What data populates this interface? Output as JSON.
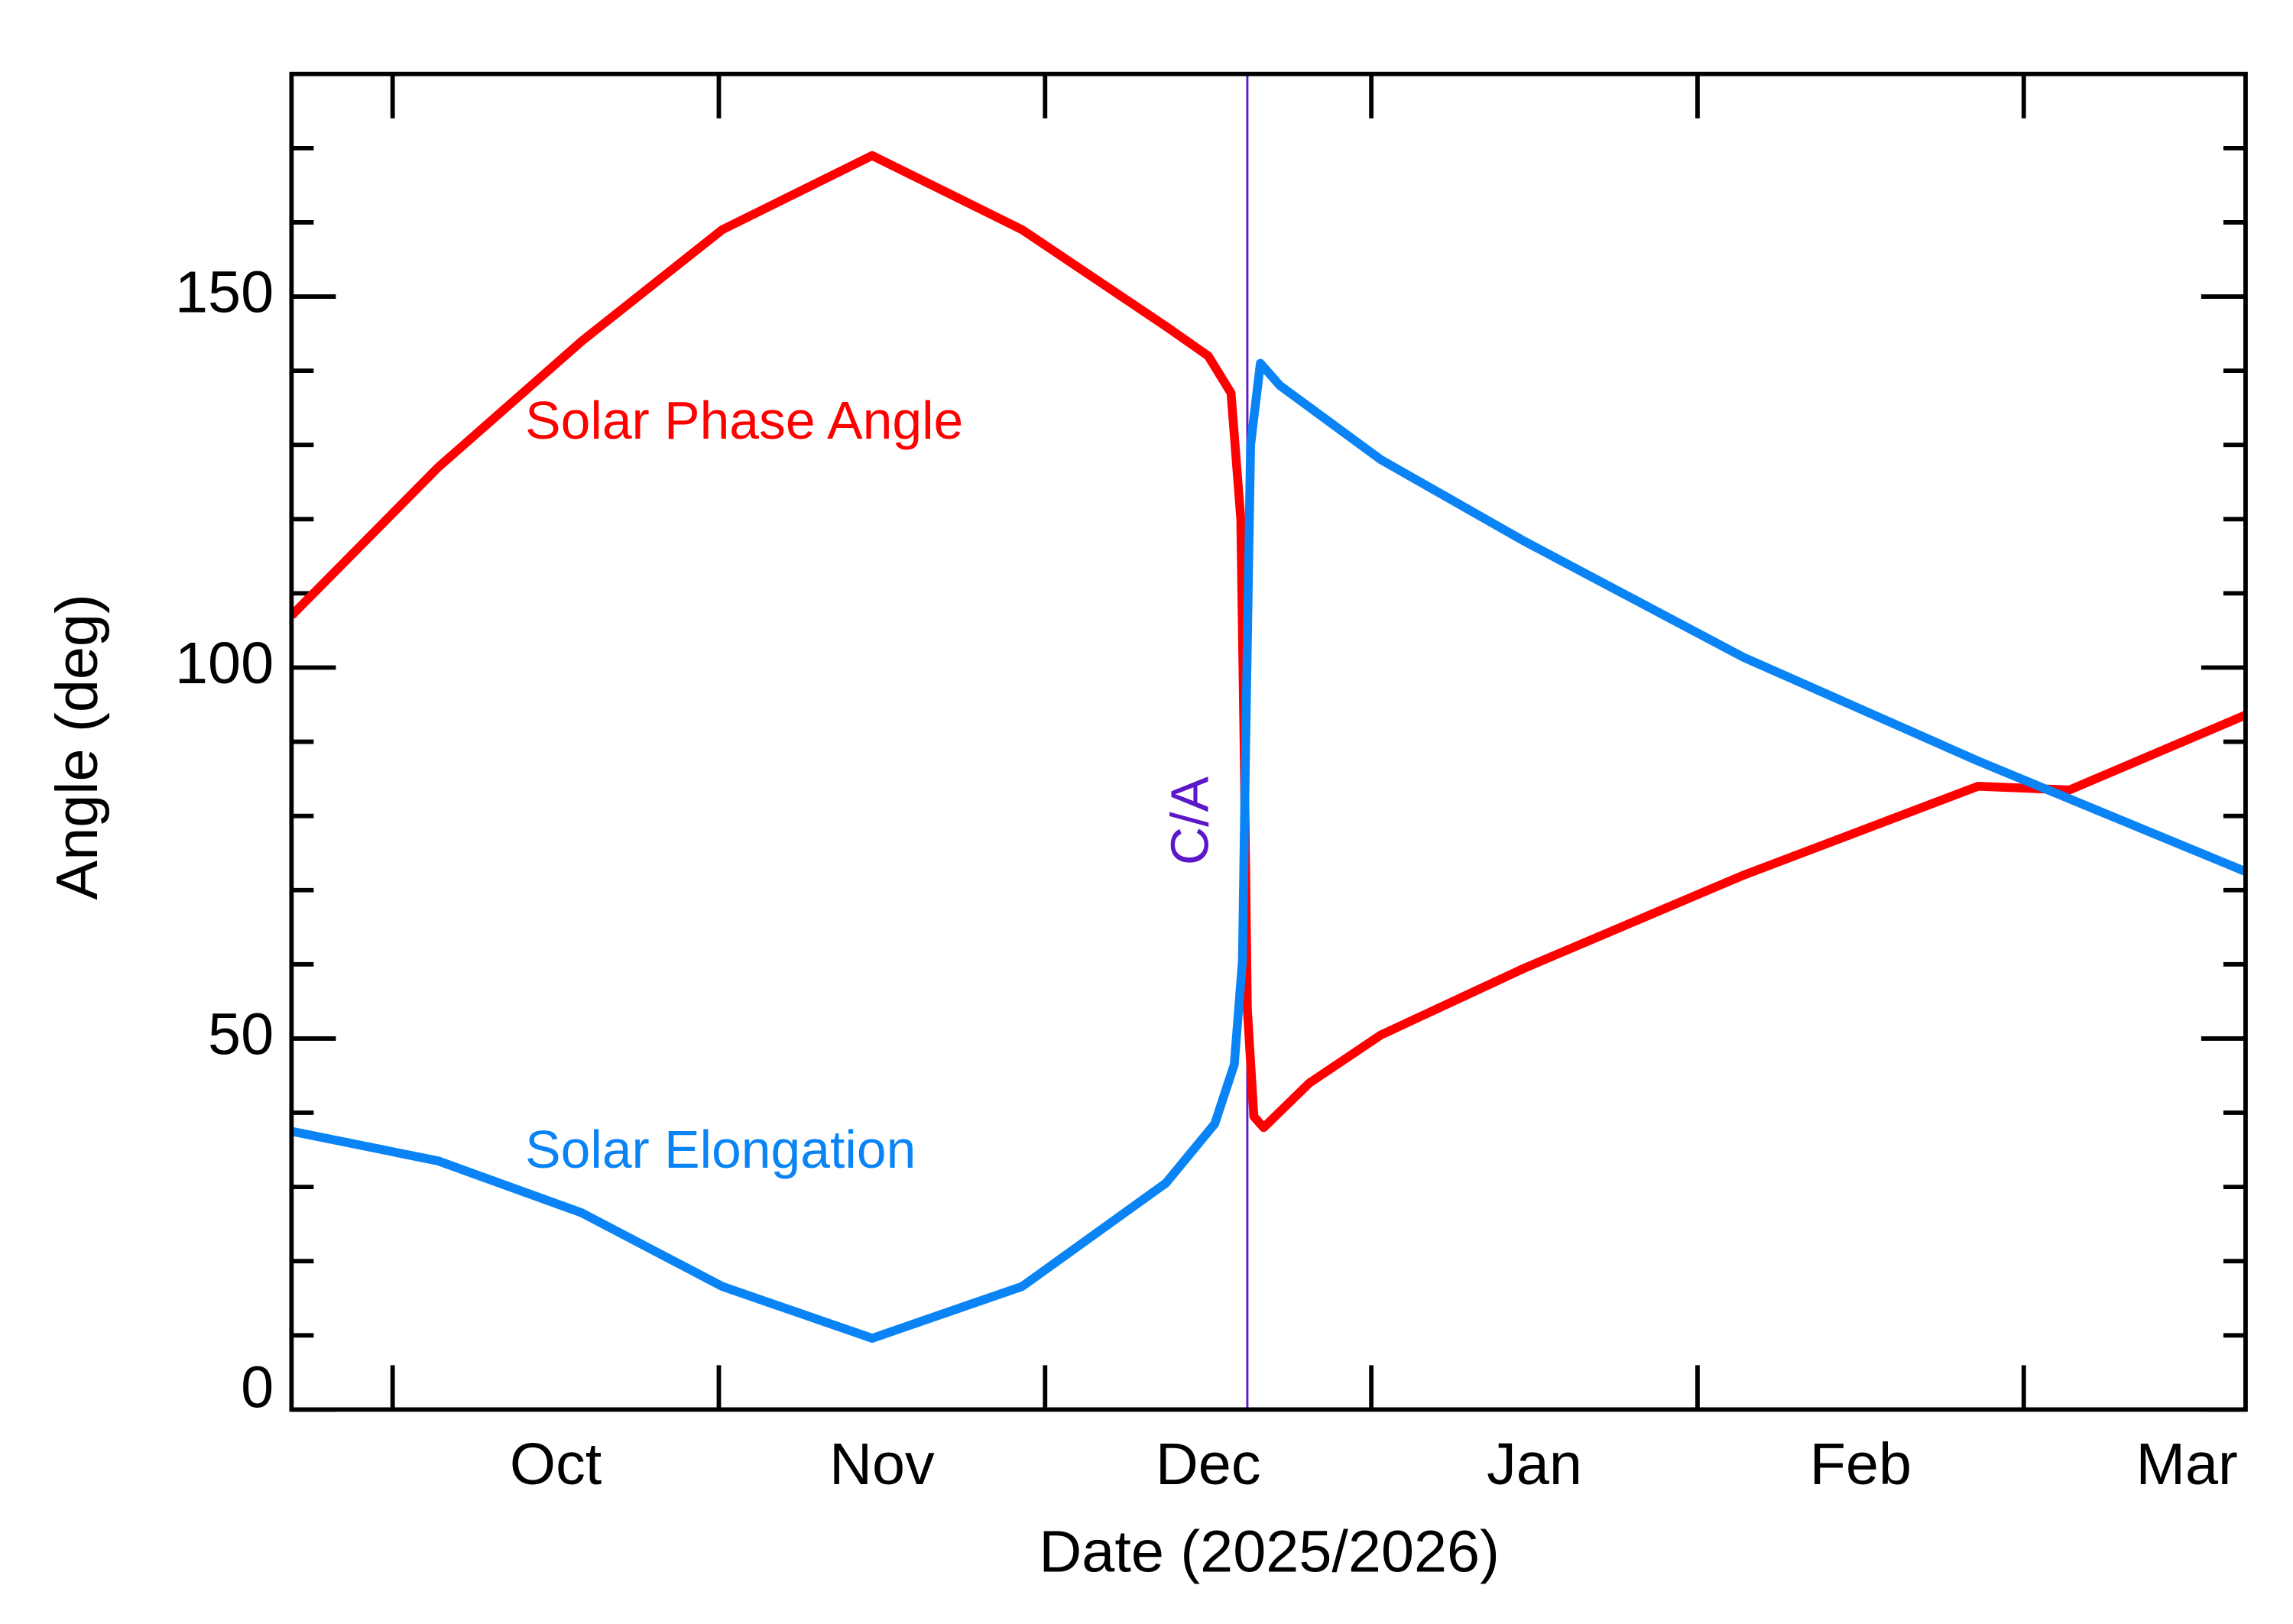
{
  "chart_data": {
    "type": "line",
    "x_label": "Date (2025/2026)",
    "y_label": "Angle (deg)",
    "xlim": [
      -0.31,
      5.68
    ],
    "xticks": [
      {
        "value": 0.5,
        "label": "Oct"
      },
      {
        "value": 1.5,
        "label": "Nov"
      },
      {
        "value": 2.5,
        "label": "Dec"
      },
      {
        "value": 3.5,
        "label": "Jan"
      },
      {
        "value": 4.5,
        "label": "Feb"
      },
      {
        "value": 5.5,
        "label": "Mar"
      }
    ],
    "xtick_marks": [
      0,
      1,
      2,
      3,
      4,
      5
    ],
    "ylim": [
      0,
      180
    ],
    "yticks": [
      0,
      50,
      100,
      150
    ],
    "yminor_ticks": [
      10,
      20,
      30,
      40,
      60,
      70,
      80,
      90,
      110,
      120,
      130,
      140,
      160,
      170
    ],
    "annotations": [
      {
        "label": "C/A",
        "x": 2.62,
        "color": "#5b17c9"
      }
    ],
    "series": [
      {
        "name": "Solar Phase Angle",
        "color": "#ff0000",
        "x": [
          -0.31,
          0.14,
          0.58,
          1.01,
          1.47,
          1.93,
          2.37,
          2.5,
          2.57,
          2.6,
          2.61,
          2.62,
          2.64,
          2.67,
          2.81,
          3.03,
          3.47,
          4.14,
          4.86,
          5.14,
          5.68
        ],
        "values": [
          107,
          127,
          144,
          159,
          169,
          159,
          146,
          142,
          137,
          120,
          90,
          54,
          39.5,
          38,
          44,
          50.5,
          59.5,
          72,
          84,
          83.5,
          93.6
        ]
      },
      {
        "name": "Solar Elongation",
        "color": "#0a84f5",
        "x": [
          -0.31,
          0.14,
          0.58,
          1.01,
          1.47,
          1.93,
          2.37,
          2.52,
          2.58,
          2.605,
          2.615,
          2.63,
          2.66,
          2.72,
          3.03,
          3.47,
          4.14,
          4.86,
          5.68
        ],
        "values": [
          37.5,
          33.5,
          26.5,
          16.6,
          9.6,
          16.6,
          30.5,
          38.5,
          46.5,
          60.5,
          90,
          130,
          141,
          138,
          128,
          117,
          101.4,
          87.4,
          72.5
        ]
      }
    ]
  }
}
